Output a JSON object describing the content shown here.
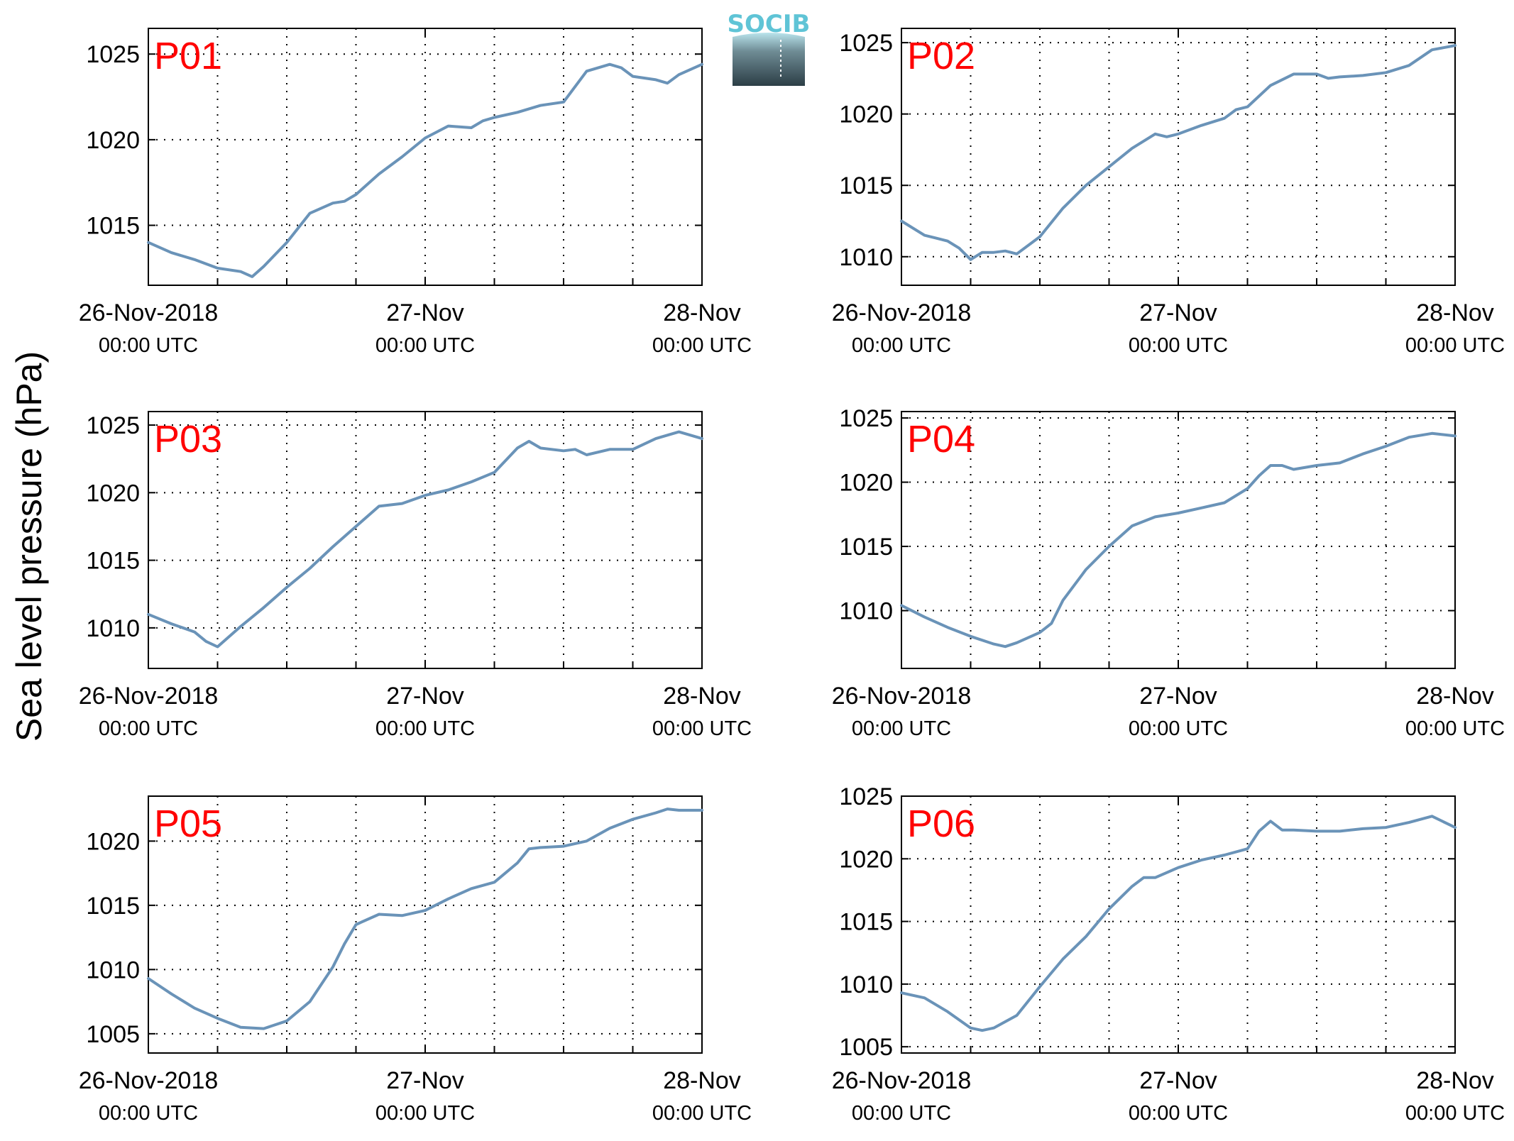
{
  "figure": {
    "ylabel": "Sea level pressure (hPa)",
    "logo_text": "SOCIB"
  },
  "colors": {
    "line": "#6a93b8",
    "panel_label": "#ff0000",
    "axis": "#000000",
    "grid": "#000000"
  },
  "chart_data": [
    {
      "type": "line",
      "title": "",
      "label": "P01",
      "ylim": [
        1011.5,
        1026.5
      ],
      "yticks": [
        1015,
        1020,
        1025
      ],
      "xticks": [
        0,
        24,
        48
      ],
      "xtick_labels": [
        [
          "26-Nov-2018",
          "00:00 UTC"
        ],
        [
          "27-Nov",
          "00:00 UTC"
        ],
        [
          "28-Nov",
          "00:00 UTC"
        ]
      ],
      "series": [
        {
          "name": "",
          "x": [
            0,
            2,
            4,
            6,
            8,
            9,
            10,
            12,
            14,
            16,
            17,
            18,
            20,
            22,
            24,
            26,
            28,
            29,
            30,
            32,
            34,
            36,
            38,
            40,
            41,
            42,
            44,
            45,
            46,
            48
          ],
          "y": [
            1014.0,
            1013.4,
            1013.0,
            1012.5,
            1012.3,
            1012.0,
            1012.6,
            1014.0,
            1015.7,
            1016.3,
            1016.4,
            1016.8,
            1018.0,
            1019.0,
            1020.1,
            1020.8,
            1020.7,
            1021.1,
            1021.3,
            1021.6,
            1022.0,
            1022.2,
            1024.0,
            1024.4,
            1024.2,
            1023.7,
            1023.5,
            1023.3,
            1023.8,
            1024.4
          ]
        }
      ]
    },
    {
      "type": "line",
      "title": "",
      "label": "P02",
      "ylim": [
        1008,
        1026
      ],
      "yticks": [
        1010,
        1015,
        1020,
        1025
      ],
      "xticks": [
        0,
        24,
        48
      ],
      "xtick_labels": [
        [
          "26-Nov-2018",
          "00:00 UTC"
        ],
        [
          "27-Nov",
          "00:00 UTC"
        ],
        [
          "28-Nov",
          "00:00 UTC"
        ]
      ],
      "series": [
        {
          "name": "",
          "x": [
            0,
            2,
            3,
            4,
            5,
            6,
            7,
            8,
            9,
            10,
            12,
            14,
            16,
            18,
            20,
            22,
            23,
            24,
            26,
            28,
            29,
            30,
            32,
            34,
            36,
            37,
            38,
            40,
            42,
            44,
            46,
            48
          ],
          "y": [
            1012.5,
            1011.5,
            1011.3,
            1011.1,
            1010.6,
            1009.8,
            1010.3,
            1010.3,
            1010.4,
            1010.2,
            1011.4,
            1013.4,
            1015.0,
            1016.3,
            1017.6,
            1018.6,
            1018.4,
            1018.6,
            1019.2,
            1019.7,
            1020.3,
            1020.5,
            1022.0,
            1022.8,
            1022.8,
            1022.5,
            1022.6,
            1022.7,
            1022.9,
            1023.4,
            1024.5,
            1024.8
          ]
        }
      ]
    },
    {
      "type": "line",
      "title": "",
      "label": "P03",
      "ylim": [
        1007,
        1026
      ],
      "yticks": [
        1010,
        1015,
        1020,
        1025
      ],
      "xticks": [
        0,
        24,
        48
      ],
      "xtick_labels": [
        [
          "26-Nov-2018",
          "00:00 UTC"
        ],
        [
          "27-Nov",
          "00:00 UTC"
        ],
        [
          "28-Nov",
          "00:00 UTC"
        ]
      ],
      "series": [
        {
          "name": "",
          "x": [
            0,
            2,
            3,
            4,
            5,
            6,
            8,
            10,
            12,
            14,
            16,
            18,
            20,
            22,
            24,
            26,
            28,
            30,
            32,
            33,
            34,
            36,
            37,
            38,
            40,
            42,
            44,
            46,
            48
          ],
          "y": [
            1011.0,
            1010.3,
            1010.0,
            1009.7,
            1009.0,
            1008.6,
            1010.1,
            1011.5,
            1013.0,
            1014.4,
            1016.0,
            1017.5,
            1019.0,
            1019.2,
            1019.8,
            1020.2,
            1020.8,
            1021.5,
            1023.3,
            1023.8,
            1023.3,
            1023.1,
            1023.2,
            1022.8,
            1023.2,
            1023.2,
            1024.0,
            1024.5,
            1024.0
          ]
        }
      ]
    },
    {
      "type": "line",
      "title": "",
      "label": "P04",
      "ylim": [
        1005.5,
        1025.5
      ],
      "yticks": [
        1010,
        1015,
        1020,
        1025
      ],
      "xticks": [
        0,
        24,
        48
      ],
      "xtick_labels": [
        [
          "26-Nov-2018",
          "00:00 UTC"
        ],
        [
          "27-Nov",
          "00:00 UTC"
        ],
        [
          "28-Nov",
          "00:00 UTC"
        ]
      ],
      "series": [
        {
          "name": "",
          "x": [
            0,
            2,
            4,
            6,
            8,
            9,
            10,
            12,
            13,
            14,
            16,
            18,
            20,
            22,
            24,
            26,
            28,
            30,
            31,
            32,
            33,
            34,
            36,
            38,
            40,
            42,
            44,
            46,
            48
          ],
          "y": [
            1010.4,
            1009.5,
            1008.7,
            1008.0,
            1007.4,
            1007.2,
            1007.5,
            1008.3,
            1009.0,
            1010.8,
            1013.2,
            1015.0,
            1016.6,
            1017.3,
            1017.6,
            1018.0,
            1018.4,
            1019.5,
            1020.5,
            1021.3,
            1021.3,
            1021.0,
            1021.3,
            1021.5,
            1022.2,
            1022.8,
            1023.5,
            1023.8,
            1023.6
          ]
        }
      ]
    },
    {
      "type": "line",
      "title": "",
      "label": "P05",
      "ylim": [
        1003.5,
        1023.5
      ],
      "yticks": [
        1005,
        1010,
        1015,
        1020
      ],
      "xticks": [
        0,
        24,
        48
      ],
      "xtick_labels": [
        [
          "26-Nov-2018",
          "00:00 UTC"
        ],
        [
          "27-Nov",
          "00:00 UTC"
        ],
        [
          "28-Nov",
          "00:00 UTC"
        ]
      ],
      "series": [
        {
          "name": "",
          "x": [
            0,
            2,
            4,
            6,
            8,
            10,
            12,
            14,
            16,
            17,
            18,
            20,
            22,
            24,
            26,
            28,
            30,
            32,
            33,
            34,
            36,
            38,
            40,
            42,
            44,
            45,
            46,
            48
          ],
          "y": [
            1009.3,
            1008.1,
            1007.0,
            1006.2,
            1005.5,
            1005.4,
            1006.0,
            1007.5,
            1010.2,
            1012.0,
            1013.5,
            1014.3,
            1014.2,
            1014.6,
            1015.5,
            1016.3,
            1016.8,
            1018.3,
            1019.4,
            1019.5,
            1019.6,
            1020.0,
            1021.0,
            1021.7,
            1022.2,
            1022.5,
            1022.4,
            1022.4
          ]
        }
      ]
    },
    {
      "type": "line",
      "title": "",
      "label": "P06",
      "ylim": [
        1004.5,
        1025
      ],
      "yticks": [
        1005,
        1010,
        1015,
        1020,
        1025
      ],
      "xticks": [
        0,
        24,
        48
      ],
      "xtick_labels": [
        [
          "26-Nov-2018",
          "00:00 UTC"
        ],
        [
          "27-Nov",
          "00:00 UTC"
        ],
        [
          "28-Nov",
          "00:00 UTC"
        ]
      ],
      "series": [
        {
          "name": "",
          "x": [
            0,
            2,
            4,
            6,
            7,
            8,
            10,
            12,
            14,
            16,
            18,
            20,
            21,
            22,
            24,
            26,
            28,
            30,
            31,
            32,
            33,
            34,
            36,
            38,
            40,
            42,
            44,
            46,
            48
          ],
          "y": [
            1009.3,
            1008.9,
            1007.8,
            1006.5,
            1006.3,
            1006.5,
            1007.5,
            1009.8,
            1012.0,
            1013.8,
            1016.0,
            1017.8,
            1018.5,
            1018.5,
            1019.3,
            1019.9,
            1020.3,
            1020.8,
            1022.2,
            1023.0,
            1022.3,
            1022.3,
            1022.2,
            1022.2,
            1022.4,
            1022.5,
            1022.9,
            1023.4,
            1022.5
          ]
        }
      ]
    }
  ]
}
